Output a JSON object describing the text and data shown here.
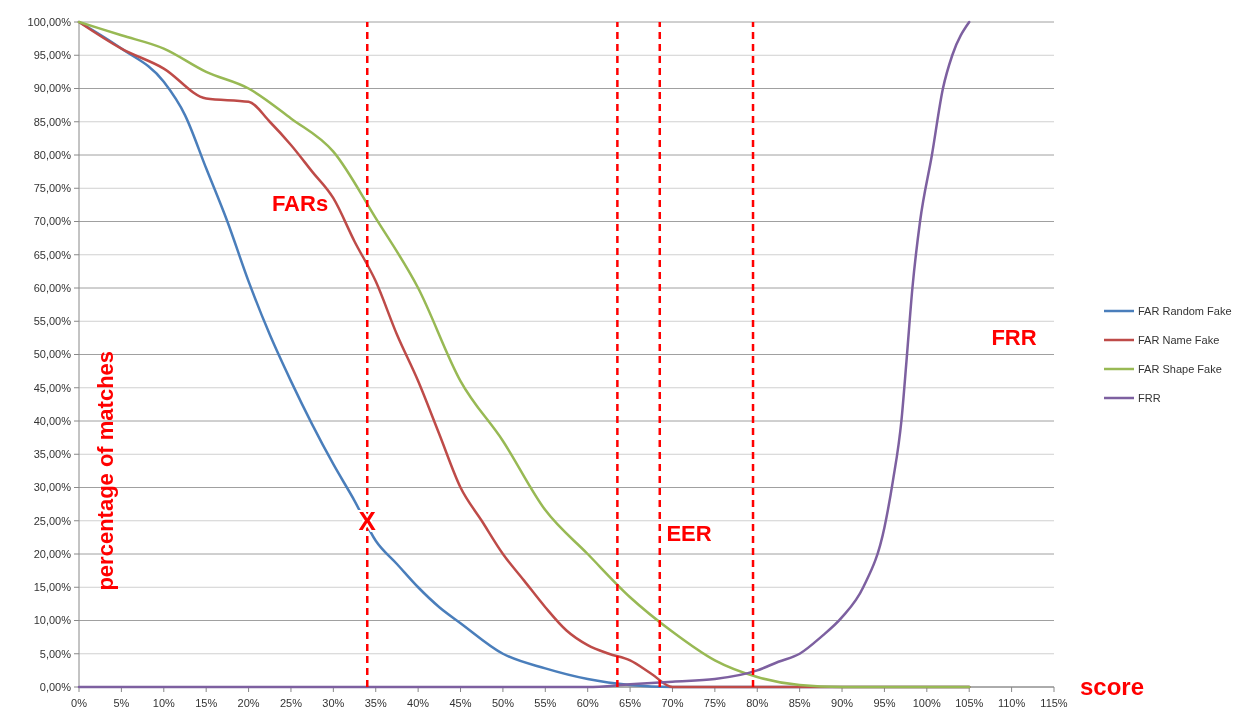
{
  "chart_data": {
    "type": "line",
    "xlabel": "score",
    "ylabel": "percentage of matches",
    "xlim": [
      0,
      115
    ],
    "xticks": [
      {
        "value": 0,
        "label": "0%"
      },
      {
        "value": 5,
        "label": "5%"
      },
      {
        "value": 10,
        "label": "10%"
      },
      {
        "value": 15,
        "label": "15%"
      },
      {
        "value": 20,
        "label": "20%"
      },
      {
        "value": 25,
        "label": "25%"
      },
      {
        "value": 30,
        "label": "30%"
      },
      {
        "value": 35,
        "label": "35%"
      },
      {
        "value": 40,
        "label": "40%"
      },
      {
        "value": 45,
        "label": "45%"
      },
      {
        "value": 50,
        "label": "50%"
      },
      {
        "value": 55,
        "label": "55%"
      },
      {
        "value": 60,
        "label": "60%"
      },
      {
        "value": 65,
        "label": "65%"
      },
      {
        "value": 70,
        "label": "70%"
      },
      {
        "value": 75,
        "label": "75%"
      },
      {
        "value": 80,
        "label": "80%"
      },
      {
        "value": 85,
        "label": "85%"
      },
      {
        "value": 90,
        "label": "90%"
      },
      {
        "value": 95,
        "label": "95%"
      },
      {
        "value": 100,
        "label": "100%"
      },
      {
        "value": 105,
        "label": "105%"
      },
      {
        "value": 110,
        "label": "110%"
      },
      {
        "value": 115,
        "label": "115%"
      }
    ],
    "ylim": [
      0,
      100
    ],
    "yticks": [
      {
        "value": 0,
        "label": "0,00%"
      },
      {
        "value": 5,
        "label": "5,00%"
      },
      {
        "value": 10,
        "label": "10,00%"
      },
      {
        "value": 15,
        "label": "15,00%"
      },
      {
        "value": 20,
        "label": "20,00%"
      },
      {
        "value": 25,
        "label": "25,00%"
      },
      {
        "value": 30,
        "label": "30,00%"
      },
      {
        "value": 35,
        "label": "35,00%"
      },
      {
        "value": 40,
        "label": "40,00%"
      },
      {
        "value": 45,
        "label": "45,00%"
      },
      {
        "value": 50,
        "label": "50,00%"
      },
      {
        "value": 55,
        "label": "55,00%"
      },
      {
        "value": 60,
        "label": "60,00%"
      },
      {
        "value": 65,
        "label": "65,00%"
      },
      {
        "value": 70,
        "label": "70,00%"
      },
      {
        "value": 75,
        "label": "75,00%"
      },
      {
        "value": 80,
        "label": "80,00%"
      },
      {
        "value": 85,
        "label": "85,00%"
      },
      {
        "value": 90,
        "label": "90,00%"
      },
      {
        "value": 95,
        "label": "95,00%"
      },
      {
        "value": 100,
        "label": "100,00%"
      }
    ],
    "grid": "y",
    "legend": "right",
    "marker": "none",
    "line_style": "solid",
    "series": [
      {
        "name": "FAR Random Fake",
        "color": "#4a7ebb",
        "x": [
          0,
          5,
          10,
          12.5,
          15,
          17.5,
          20,
          22.5,
          25,
          27.5,
          30,
          32.5,
          35,
          37.5,
          40,
          42.5,
          45,
          50,
          55,
          60,
          65,
          70,
          105
        ],
        "values": [
          100,
          96,
          91,
          86,
          78,
          70,
          61,
          53,
          46,
          39.5,
          33.5,
          28,
          22,
          18.5,
          15,
          12,
          9.6,
          5,
          2.8,
          1.2,
          0.3,
          0,
          0
        ]
      },
      {
        "name": "FAR Name  Fake",
        "color": "#be4b48",
        "x": [
          0,
          5,
          10,
          15,
          20,
          22.5,
          25,
          27.5,
          30,
          32.5,
          35,
          37.5,
          40,
          42.5,
          45,
          47.5,
          50,
          52.5,
          55,
          57.5,
          60,
          62.5,
          65,
          67.5,
          70,
          105
        ],
        "values": [
          100,
          96,
          93,
          88.5,
          88,
          85,
          81.5,
          77.5,
          73.5,
          67,
          61,
          53,
          46,
          38,
          30,
          25,
          20,
          16,
          12,
          8.5,
          6.3,
          5,
          4,
          2,
          0,
          0
        ]
      },
      {
        "name": "FAR Shape Fake",
        "color": "#98b954",
        "x": [
          0,
          5,
          10,
          15,
          20,
          25,
          30,
          35,
          40,
          45,
          50,
          55,
          60,
          65,
          70,
          75,
          80,
          85,
          90,
          105
        ],
        "values": [
          100,
          98,
          96,
          92.5,
          90,
          85.5,
          80.5,
          70.5,
          60,
          46,
          37,
          26.6,
          20,
          13.5,
          8.3,
          4,
          1.5,
          0.3,
          0,
          0
        ]
      },
      {
        "name": "FRR",
        "color": "#7d60a0",
        "x": [
          0,
          60,
          65,
          70,
          75,
          80,
          82.5,
          85,
          87.5,
          90,
          92.5,
          95,
          96,
          97,
          97.6,
          98.3,
          99.2,
          100.6,
          101.9,
          103,
          105
        ],
        "values": [
          0,
          0,
          0.4,
          0.8,
          1.2,
          2.5,
          3.8,
          5,
          7.5,
          10.5,
          15,
          24,
          31,
          40,
          49,
          60,
          70,
          80,
          90,
          95,
          100
        ]
      }
    ],
    "ref_lines": [
      {
        "axis": "x",
        "value": 34,
        "color": "#ff0000",
        "line_style": "dashed"
      },
      {
        "axis": "x",
        "value": 63.5,
        "color": "#ff0000",
        "line_style": "dashed"
      },
      {
        "axis": "x",
        "value": 68.5,
        "color": "#ff0000",
        "line_style": "dashed"
      },
      {
        "axis": "x",
        "value": 79.5,
        "color": "#ff0000",
        "line_style": "dashed"
      }
    ],
    "annotations": [
      "FARs",
      {
        "text": "X",
        "x": 34,
        "y": 25
      },
      "EER",
      "FRR"
    ]
  }
}
